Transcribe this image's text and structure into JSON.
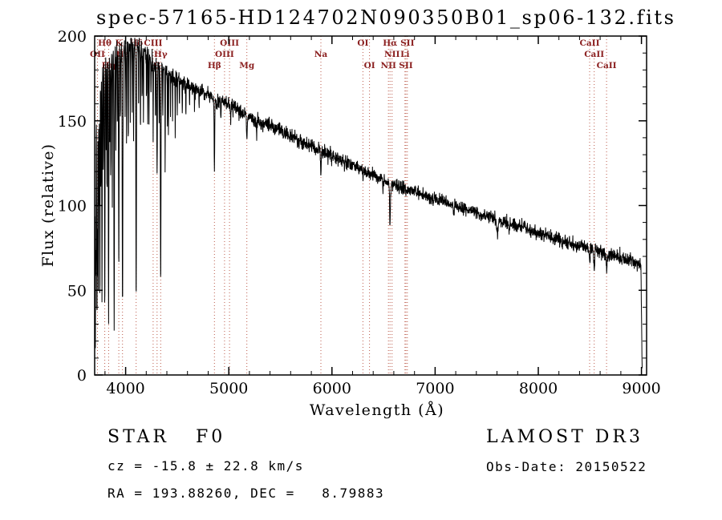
{
  "chart_data": {
    "type": "line",
    "title": "spec-57165-HD124702N090350B01_sp06-132.fits",
    "xlabel": "Wavelength (Å)",
    "ylabel": "Flux (relative)",
    "xlim": [
      3700,
      9050
    ],
    "ylim": [
      0,
      200
    ],
    "x_ticks": [
      4000,
      5000,
      6000,
      7000,
      8000,
      9000
    ],
    "x_minor": 200,
    "y_ticks": [
      0,
      50,
      100,
      150,
      200
    ],
    "y_minor": 10,
    "grid": false,
    "line_color": "#000000",
    "marker_line_color": "#bb5a4a",
    "marker_label_color": "#8b2020",
    "spectral_markers": [
      {
        "label": "Hθ",
        "wl": 3798,
        "row": 1
      },
      {
        "label": "K",
        "wl": 3934,
        "row": 1
      },
      {
        "label": "Hδ",
        "wl": 4102,
        "row": 1
      },
      {
        "label": "CIII",
        "wl": 4267,
        "row": 1
      },
      {
        "label": "OIII",
        "wl": 5007,
        "row": 1
      },
      {
        "label": "OI",
        "wl": 6300,
        "row": 1
      },
      {
        "label": "Hα",
        "wl": 6563,
        "row": 1
      },
      {
        "label": "SII",
        "wl": 6731,
        "row": 1
      },
      {
        "label": "CaII",
        "wl": 8498,
        "row": 1
      },
      {
        "label": "OII",
        "wl": 3727,
        "row": 2
      },
      {
        "label": "Hε",
        "wl": 3970,
        "row": 2
      },
      {
        "label": "Hγ",
        "wl": 4340,
        "row": 2
      },
      {
        "label": "OIII",
        "wl": 4959,
        "row": 2
      },
      {
        "label": "Na",
        "wl": 5893,
        "row": 2
      },
      {
        "label": "NII",
        "wl": 6583,
        "row": 2
      },
      {
        "label": "Li",
        "wl": 6708,
        "row": 2
      },
      {
        "label": "CaII",
        "wl": 8542,
        "row": 2
      },
      {
        "label": "Hη",
        "wl": 3835,
        "row": 3
      },
      {
        "label": "G",
        "wl": 4305,
        "row": 3
      },
      {
        "label": "Hβ",
        "wl": 4861,
        "row": 3
      },
      {
        "label": "Mg",
        "wl": 5175,
        "row": 3
      },
      {
        "label": "OI",
        "wl": 6364,
        "row": 3
      },
      {
        "label": "NII",
        "wl": 6548,
        "row": 3
      },
      {
        "label": "SII",
        "wl": 6717,
        "row": 3
      },
      {
        "label": "CaII",
        "wl": 8662,
        "row": 3
      }
    ],
    "continuum": [
      [
        3700,
        148
      ],
      [
        3720,
        162
      ],
      [
        3740,
        170
      ],
      [
        3760,
        176
      ],
      [
        3780,
        180
      ],
      [
        3800,
        183
      ],
      [
        3840,
        186
      ],
      [
        3880,
        188
      ],
      [
        3920,
        190
      ],
      [
        3960,
        191
      ],
      [
        4000,
        193
      ],
      [
        4040,
        195
      ],
      [
        4080,
        195
      ],
      [
        4120,
        194
      ],
      [
        4160,
        192
      ],
      [
        4200,
        190
      ],
      [
        4250,
        187
      ],
      [
        4300,
        184
      ],
      [
        4350,
        181
      ],
      [
        4400,
        179
      ],
      [
        4450,
        177
      ],
      [
        4500,
        175
      ],
      [
        4600,
        171
      ],
      [
        4700,
        168
      ],
      [
        4800,
        165
      ],
      [
        4900,
        162
      ],
      [
        5000,
        159
      ],
      [
        5100,
        156
      ],
      [
        5200,
        152
      ],
      [
        5300,
        149
      ],
      [
        5400,
        147
      ],
      [
        5500,
        144
      ],
      [
        5600,
        141
      ],
      [
        5700,
        138
      ],
      [
        5800,
        135
      ],
      [
        5900,
        132
      ],
      [
        6000,
        129
      ],
      [
        6100,
        127
      ],
      [
        6200,
        124
      ],
      [
        6300,
        121
      ],
      [
        6400,
        118
      ],
      [
        6500,
        115
      ],
      [
        6600,
        112
      ],
      [
        6700,
        110
      ],
      [
        6800,
        108
      ],
      [
        6900,
        106
      ],
      [
        7000,
        104
      ],
      [
        7100,
        102
      ],
      [
        7200,
        100
      ],
      [
        7300,
        98
      ],
      [
        7400,
        96
      ],
      [
        7500,
        94
      ],
      [
        7600,
        92
      ],
      [
        7700,
        90
      ],
      [
        7800,
        88
      ],
      [
        7900,
        86
      ],
      [
        8000,
        84
      ],
      [
        8100,
        82
      ],
      [
        8200,
        80
      ],
      [
        8300,
        78
      ],
      [
        8400,
        76
      ],
      [
        8500,
        75
      ],
      [
        8600,
        73
      ],
      [
        8700,
        71
      ],
      [
        8800,
        69
      ],
      [
        8900,
        67
      ],
      [
        8960,
        66
      ],
      [
        8995,
        65
      ],
      [
        9002,
        30
      ],
      [
        9006,
        4
      ],
      [
        9008,
        2
      ]
    ],
    "absorption_lines": [
      [
        3706,
        3,
        150
      ],
      [
        3712,
        2.5,
        95
      ],
      [
        3722,
        3,
        135
      ],
      [
        3728,
        2.5,
        110
      ],
      [
        3735,
        2.5,
        125
      ],
      [
        3742,
        2,
        90
      ],
      [
        3750,
        3,
        140
      ],
      [
        3760,
        2,
        80
      ],
      [
        3771,
        3,
        135
      ],
      [
        3784,
        2,
        70
      ],
      [
        3798,
        3.5,
        150
      ],
      [
        3812,
        2,
        60
      ],
      [
        3820,
        2.5,
        85
      ],
      [
        3835,
        3.5,
        155
      ],
      [
        3848,
        2,
        60
      ],
      [
        3856,
        2.5,
        75
      ],
      [
        3871,
        2.5,
        85
      ],
      [
        3889,
        3.5,
        158
      ],
      [
        3905,
        2,
        55
      ],
      [
        3920,
        2,
        50
      ],
      [
        3934,
        3.5,
        130
      ],
      [
        3950,
        2,
        45
      ],
      [
        3970,
        4,
        158
      ],
      [
        3995,
        2,
        40
      ],
      [
        4009,
        2.5,
        55
      ],
      [
        4026,
        2.5,
        65
      ],
      [
        4045,
        2,
        45
      ],
      [
        4063,
        2,
        40
      ],
      [
        4077,
        2.5,
        55
      ],
      [
        4102,
        4,
        150
      ],
      [
        4126,
        2,
        40
      ],
      [
        4144,
        2.5,
        50
      ],
      [
        4160,
        2,
        35
      ],
      [
        4173,
        2.5,
        45
      ],
      [
        4202,
        2,
        35
      ],
      [
        4215,
        2.5,
        45
      ],
      [
        4227,
        2,
        40
      ],
      [
        4246,
        2,
        30
      ],
      [
        4267,
        2.5,
        50
      ],
      [
        4290,
        2,
        35
      ],
      [
        4305,
        4,
        65
      ],
      [
        4325,
        2,
        35
      ],
      [
        4340,
        4,
        130
      ],
      [
        4360,
        2,
        30
      ],
      [
        4383,
        2.5,
        55
      ],
      [
        4405,
        2,
        30
      ],
      [
        4415,
        2.5,
        40
      ],
      [
        4435,
        2,
        25
      ],
      [
        4455,
        2,
        25
      ],
      [
        4481,
        2.5,
        35
      ],
      [
        4501,
        2,
        20
      ],
      [
        4522,
        2,
        18
      ],
      [
        4549,
        2.5,
        22
      ],
      [
        4584,
        2,
        18
      ],
      [
        4620,
        2,
        15
      ],
      [
        4668,
        2,
        14
      ],
      [
        4713,
        2,
        10
      ],
      [
        4861,
        4.5,
        40
      ],
      [
        4924,
        2.5,
        10
      ],
      [
        5018,
        2.5,
        10
      ],
      [
        5041,
        2,
        6
      ],
      [
        5175,
        6,
        12
      ],
      [
        5270,
        4,
        8
      ],
      [
        5329,
        3,
        6
      ],
      [
        5893,
        5,
        14
      ],
      [
        6122,
        3,
        5
      ],
      [
        6300,
        3,
        6
      ],
      [
        6494,
        3,
        6
      ],
      [
        6563,
        5.5,
        27
      ],
      [
        6717,
        3,
        5
      ],
      [
        7180,
        6,
        5
      ],
      [
        7605,
        10,
        9
      ],
      [
        7720,
        6,
        5
      ],
      [
        8230,
        6,
        5
      ],
      [
        8498,
        5,
        9
      ],
      [
        8542,
        6,
        11
      ],
      [
        8662,
        6,
        11
      ]
    ]
  },
  "footer": {
    "star_class": "STAR   F0",
    "survey": "LAMOST DR3",
    "cz": "cz = -15.8 ± 22.8 km/s",
    "obs_date": "Obs-Date: 20150522",
    "ra_dec": "RA = 193.88260, DEC =   8.79883"
  }
}
